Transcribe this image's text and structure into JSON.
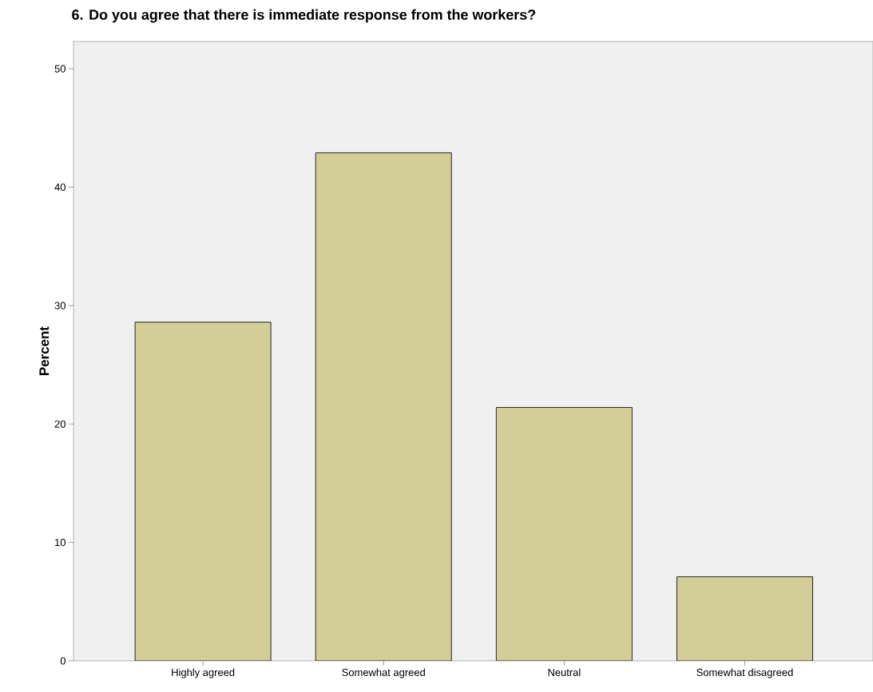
{
  "chart_data": {
    "type": "bar",
    "title": "6. Do you agree that there is immediate response from the workers?",
    "ylabel": "Percent",
    "categories": [
      "Highly agreed",
      "Somewhat agreed",
      "Neutral",
      "Somewhat disagreed"
    ],
    "values": [
      28.6,
      42.9,
      21.4,
      7.1
    ],
    "color": "#d3ce97",
    "ylim": [
      0,
      52.3
    ],
    "yticks": [
      0,
      10,
      20,
      30,
      40,
      50
    ],
    "grid": false
  }
}
